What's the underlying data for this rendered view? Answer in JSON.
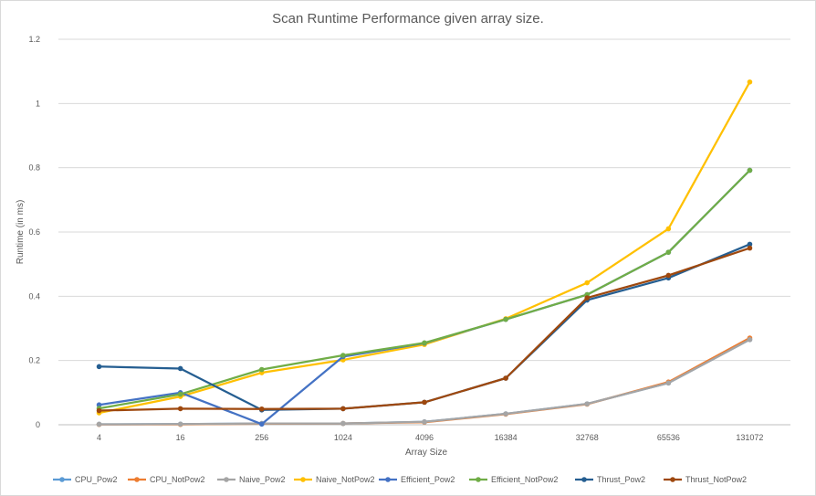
{
  "chart_data": {
    "type": "line",
    "title": "Scan Runtime Performance given array size.",
    "xlabel": "Array Size",
    "ylabel": "Runtime (in ms)",
    "categories": [
      "4",
      "16",
      "256",
      "1024",
      "4096",
      "16384",
      "32768",
      "65536",
      "131072"
    ],
    "ylim": [
      0,
      1.2
    ],
    "yticks": [
      "0",
      "0.2",
      "0.4",
      "0.6",
      "0.8",
      "1",
      "1.2"
    ],
    "grid": true,
    "legend_position": "bottom",
    "series": [
      {
        "name": "CPU_Pow2",
        "color": "#5B9BD5",
        "values": [
          0.0015,
          0.002,
          0.004,
          0.004,
          0.009,
          0.034,
          0.065,
          0.13,
          0.265
        ]
      },
      {
        "name": "CPU_NotPow2",
        "color": "#ED7D31",
        "values": [
          0.001,
          0.001,
          0.003,
          0.004,
          0.008,
          0.033,
          0.064,
          0.133,
          0.27
        ]
      },
      {
        "name": "Naive_Pow2",
        "color": "#A5A5A5",
        "values": [
          0.0015,
          0.002,
          0.004,
          0.004,
          0.009,
          0.034,
          0.065,
          0.13,
          0.265
        ]
      },
      {
        "name": "Naive_NotPow2",
        "color": "#FFC000",
        "values": [
          0.037,
          0.088,
          0.162,
          0.202,
          0.25,
          0.33,
          0.442,
          0.61,
          1.067
        ]
      },
      {
        "name": "Efficient_Pow2",
        "color": "#4472C4",
        "values": [
          0.062,
          0.1,
          0.002,
          0.212,
          0.254,
          0.328,
          0.405,
          0.537,
          0.792
        ]
      },
      {
        "name": "Efficient_NotPow2",
        "color": "#70AD47",
        "values": [
          0.051,
          0.095,
          0.172,
          0.216,
          0.255,
          0.328,
          0.405,
          0.537,
          0.792
        ]
      },
      {
        "name": "Thrust_Pow2",
        "color": "#255E91",
        "values": [
          0.181,
          0.175,
          0.046,
          0.05,
          0.07,
          0.145,
          0.388,
          0.457,
          0.562
        ]
      },
      {
        "name": "Thrust_NotPow2",
        "color": "#9E480E",
        "values": [
          0.044,
          0.05,
          0.049,
          0.05,
          0.07,
          0.145,
          0.395,
          0.465,
          0.55
        ]
      }
    ]
  }
}
